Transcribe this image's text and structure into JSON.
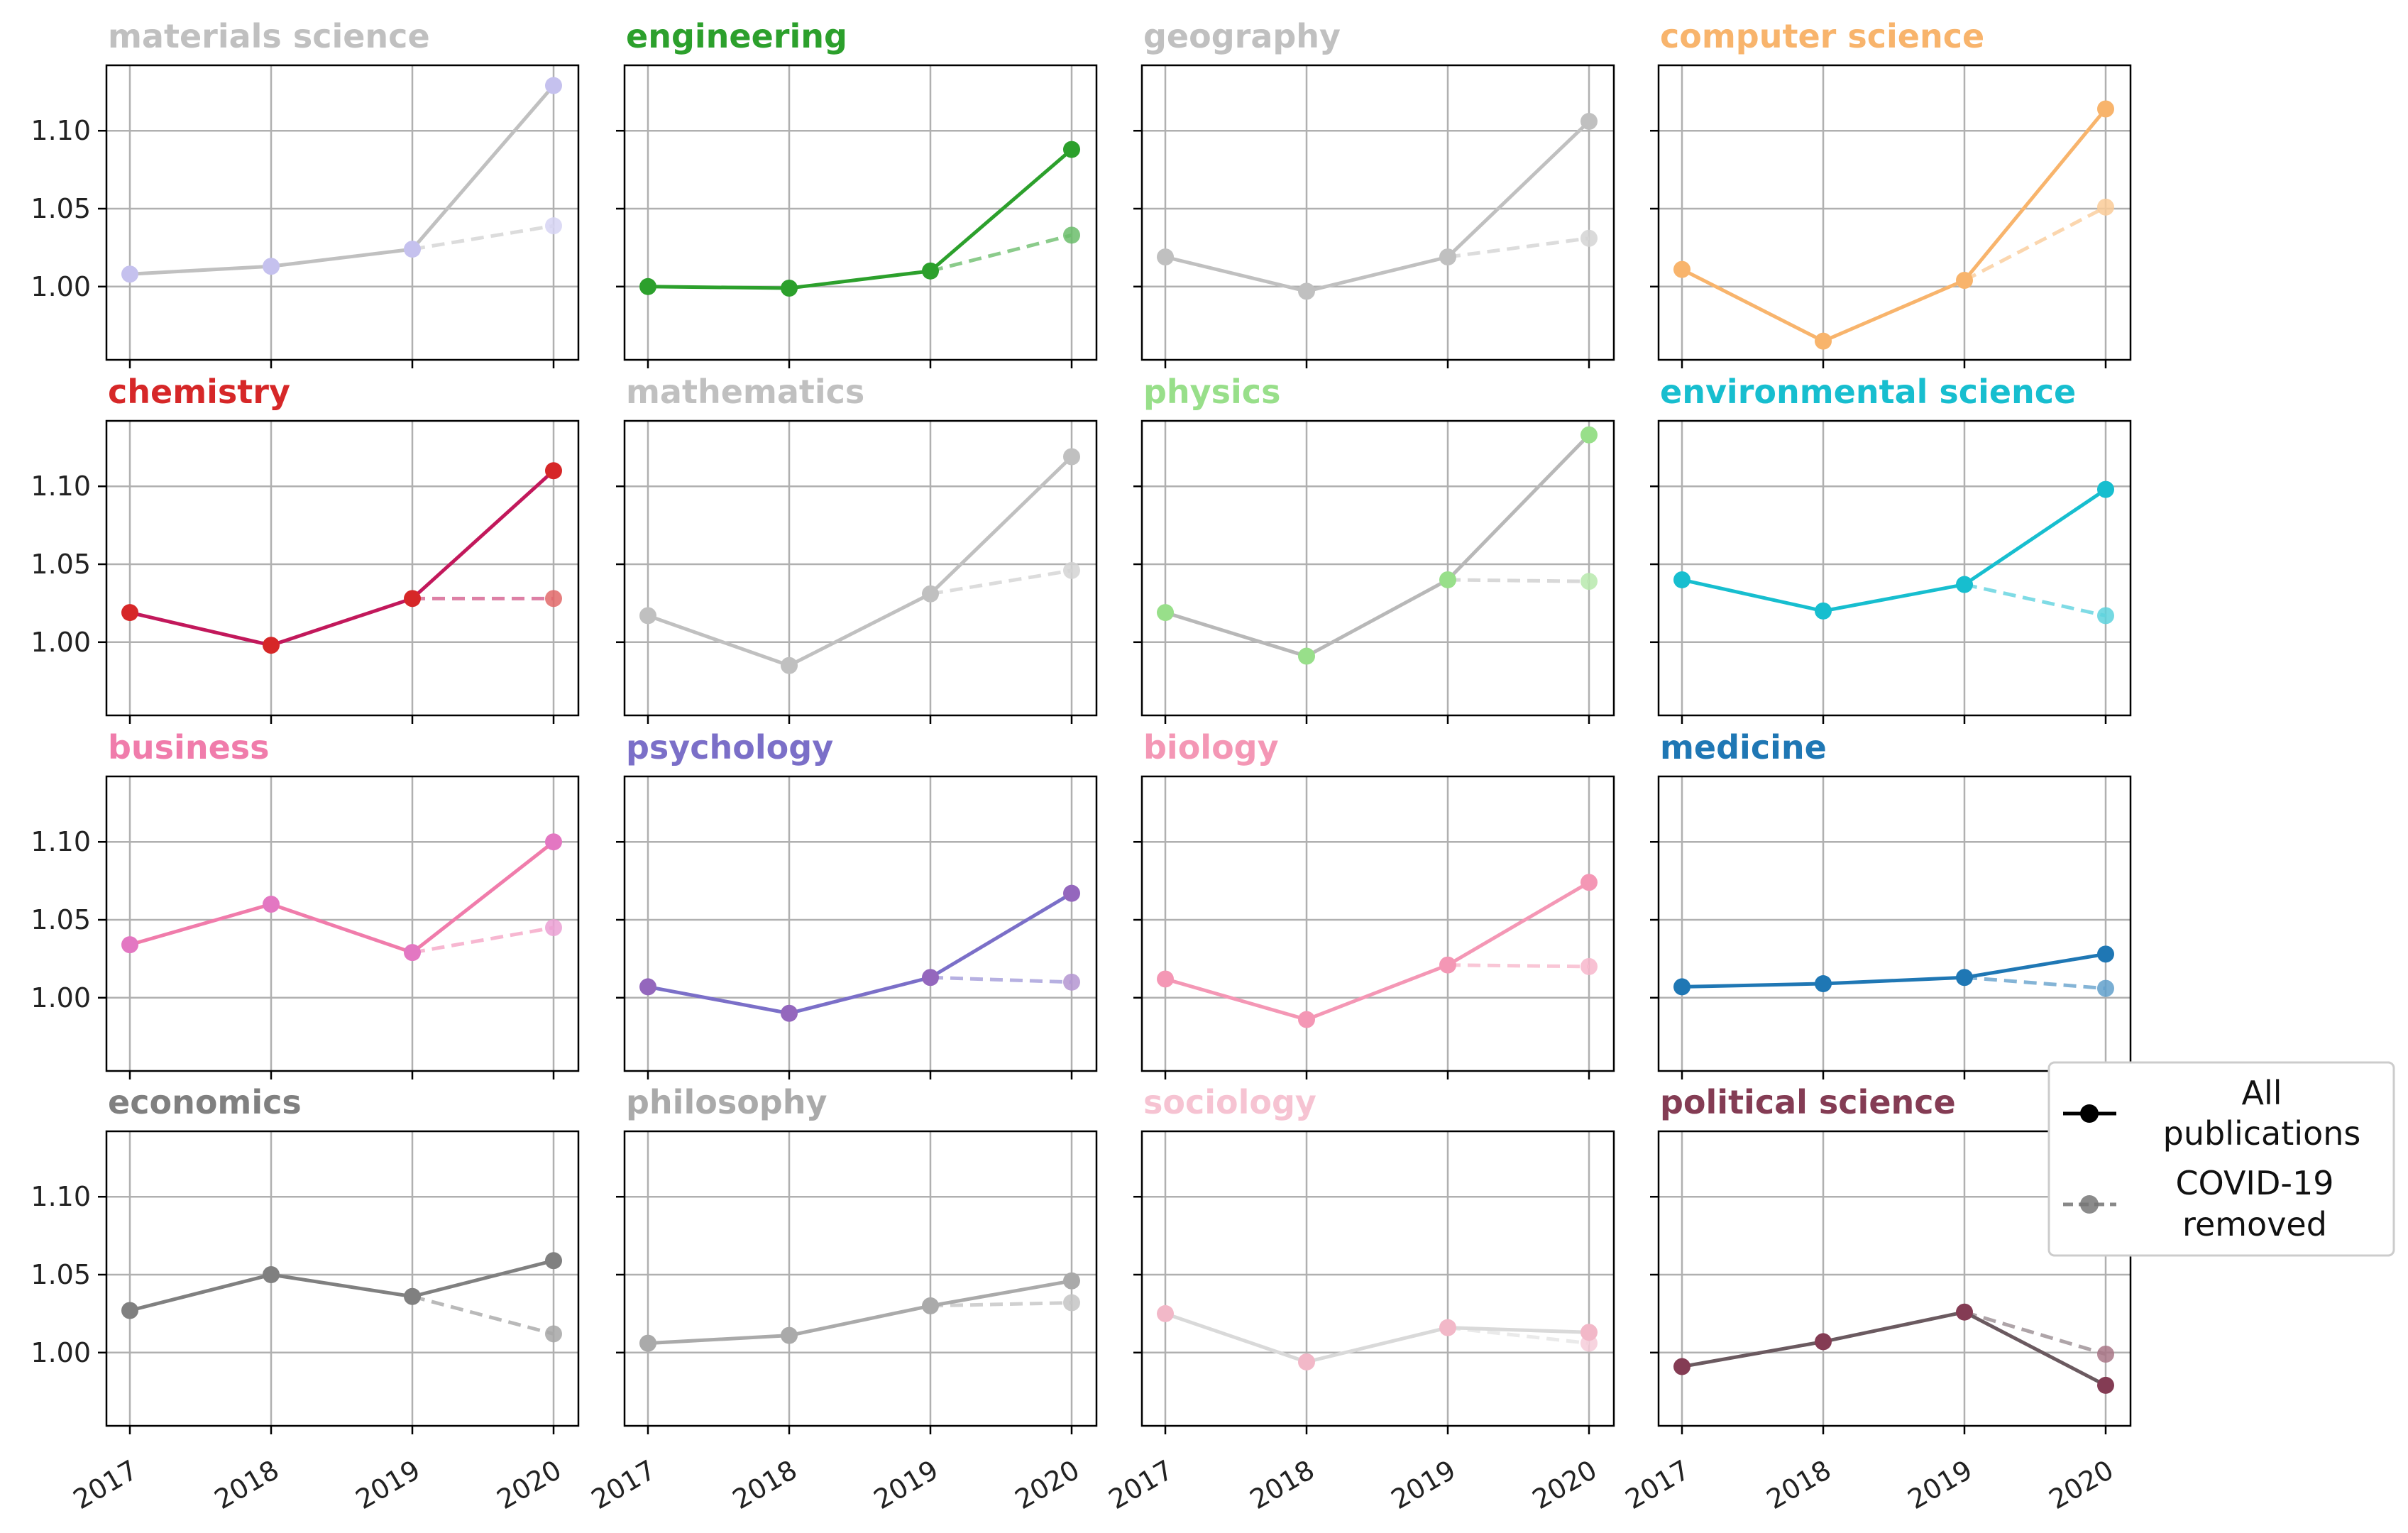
{
  "chart_data": {
    "type": "line",
    "x": [
      "2017",
      "2018",
      "2019",
      "2020"
    ],
    "yticks": [
      "1.00",
      "1.05",
      "1.10"
    ],
    "ylim": [
      0.953,
      1.142
    ],
    "grid": true,
    "layout": "4x4 small multiples, shared axes",
    "legend": {
      "placement": "right",
      "entries": [
        {
          "label_lines": [
            "All",
            "publications"
          ],
          "style": "solid"
        },
        {
          "label_lines": [
            "COVID-19",
            "removed"
          ],
          "style": "dashed"
        }
      ]
    },
    "panels": [
      {
        "title": "materials science",
        "color": "#c0c0c0",
        "marker_color": "#c5c1ee",
        "all": [
          1.008,
          1.013,
          1.024,
          1.129
        ],
        "covid_removed": [
          1.008,
          1.013,
          1.024,
          1.039
        ]
      },
      {
        "title": "engineering",
        "color": "#2ca02c",
        "marker_color": "#2ca02c",
        "all": [
          1.0,
          0.999,
          1.01,
          1.088
        ],
        "covid_removed": [
          1.0,
          0.999,
          1.01,
          1.033
        ]
      },
      {
        "title": "geography",
        "color": "#c0c0c0",
        "marker_color": "#c0c0c0",
        "all": [
          1.019,
          0.997,
          1.019,
          1.106
        ],
        "covid_removed": [
          1.019,
          0.997,
          1.019,
          1.031
        ]
      },
      {
        "title": "computer science",
        "color": "#f8b46c",
        "marker_color": "#f8b46c",
        "all": [
          1.011,
          0.965,
          1.004,
          1.114
        ],
        "covid_removed": [
          1.011,
          0.965,
          1.004,
          1.051
        ]
      },
      {
        "title": "chemistry",
        "color": "#d62728",
        "line_color": "#c2185b",
        "marker_color": "#d62728",
        "all": [
          1.019,
          0.998,
          1.028,
          1.11
        ],
        "covid_removed": [
          1.019,
          0.998,
          1.028,
          1.028
        ]
      },
      {
        "title": "mathematics",
        "color": "#c0c0c0",
        "marker_color": "#c0c0c0",
        "all": [
          1.017,
          0.985,
          1.031,
          1.119
        ],
        "covid_removed": [
          1.017,
          0.985,
          1.031,
          1.046
        ]
      },
      {
        "title": "physics",
        "color": "#98df8a",
        "line_color": "#b8b8b8",
        "marker_color": "#98df8a",
        "all": [
          1.019,
          0.991,
          1.04,
          1.133
        ],
        "covid_removed": [
          1.019,
          0.991,
          1.04,
          1.039
        ]
      },
      {
        "title": "environmental science",
        "color": "#17becf",
        "marker_color": "#17becf",
        "all": [
          1.04,
          1.02,
          1.037,
          1.098
        ],
        "covid_removed": [
          1.04,
          1.02,
          1.037,
          1.017
        ]
      },
      {
        "title": "business",
        "color": "#f07cab",
        "marker_color": "#e377c2",
        "all": [
          1.034,
          1.06,
          1.029,
          1.1
        ],
        "covid_removed": [
          1.034,
          1.06,
          1.029,
          1.045
        ]
      },
      {
        "title": "psychology",
        "color": "#7b6fc8",
        "marker_color": "#9467bd",
        "all": [
          1.007,
          0.99,
          1.013,
          1.067
        ],
        "covid_removed": [
          1.007,
          0.99,
          1.013,
          1.01
        ]
      },
      {
        "title": "biology",
        "color": "#f497b5",
        "marker_color": "#f497b5",
        "all": [
          1.012,
          0.986,
          1.021,
          1.074
        ],
        "covid_removed": [
          1.012,
          0.986,
          1.021,
          1.02
        ]
      },
      {
        "title": "medicine",
        "color": "#1f77b4",
        "marker_color": "#1f77b4",
        "all": [
          1.007,
          1.009,
          1.013,
          1.028
        ],
        "covid_removed": [
          1.007,
          1.009,
          1.013,
          1.006
        ]
      },
      {
        "title": "economics",
        "color": "#808080",
        "marker_color": "#808080",
        "all": [
          1.027,
          1.05,
          1.036,
          1.059
        ],
        "covid_removed": [
          1.027,
          1.05,
          1.036,
          1.012
        ]
      },
      {
        "title": "philosophy",
        "color": "#aaaaaa",
        "marker_color": "#aaaaaa",
        "all": [
          1.006,
          1.011,
          1.03,
          1.046
        ],
        "covid_removed": [
          1.006,
          1.011,
          1.03,
          1.032
        ]
      },
      {
        "title": "sociology",
        "color": "#f6c3d2",
        "line_color": "#d9d9d9",
        "marker_color": "#f2b8c8",
        "all": [
          1.025,
          0.994,
          1.016,
          1.013
        ],
        "covid_removed": [
          1.025,
          0.994,
          1.016,
          1.006
        ]
      },
      {
        "title": "political science",
        "color": "#843c54",
        "line_color": "#6b5a60",
        "marker_color": "#843c54",
        "all": [
          0.991,
          1.007,
          1.026,
          0.979
        ],
        "covid_removed": [
          0.991,
          1.007,
          1.026,
          0.999
        ]
      }
    ]
  }
}
